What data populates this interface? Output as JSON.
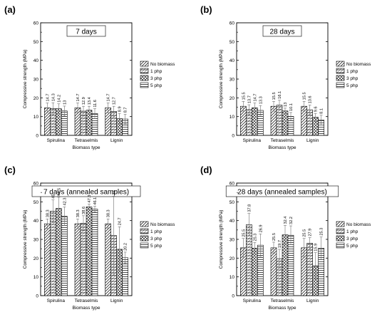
{
  "chart_data": [
    {
      "type": "bar",
      "panel_label": "(a)",
      "title": "7 days",
      "xlabel": "Biomass type",
      "ylabel": "Compressive strength (MPa)",
      "ylim": [
        0,
        60
      ],
      "yticks": [
        0,
        10,
        20,
        30,
        40,
        50,
        60
      ],
      "categories": [
        "Spirulina",
        "Tetraselmis",
        "Lignin"
      ],
      "legend_placement": "right",
      "series": [
        {
          "name": "No biomass",
          "values": [
            14.7,
            14.7,
            14.7
          ],
          "errors": [
            2.6,
            2.6,
            2.6
          ],
          "labels": [
            "14.7",
            "14.7",
            "14.7"
          ]
        },
        {
          "name": "1 php",
          "values": [
            14.3,
            12.9,
            12.7
          ],
          "errors": [
            3.1,
            2.6,
            2.8
          ],
          "labels": [
            "14.3",
            "12.9",
            "12.7"
          ]
        },
        {
          "name": "3 php",
          "values": [
            14.2,
            13.4,
            8.9
          ],
          "errors": [
            2.6,
            2.1,
            2.8
          ],
          "labels": [
            "14.2",
            "13.4",
            "8.9"
          ]
        },
        {
          "name": "5 php",
          "values": [
            13.0,
            11.6,
            8.7
          ],
          "errors": [
            2.6,
            2.6,
            2.6
          ],
          "labels": [
            "13",
            "11.6",
            "8.7"
          ]
        }
      ]
    },
    {
      "type": "bar",
      "panel_label": "(b)",
      "title": "28 days",
      "xlabel": "Biomass type",
      "ylabel": "Compressive strength (MPa)",
      "ylim": [
        0,
        60
      ],
      "yticks": [
        0,
        10,
        20,
        30,
        40,
        50,
        60
      ],
      "categories": [
        "Spirulina",
        "Tetraselmis",
        "Lignin"
      ],
      "legend_placement": "right",
      "series": [
        {
          "name": "No biomass",
          "values": [
            15.5,
            15.5,
            15.5
          ],
          "errors": [
            2.6,
            2.6,
            2.6
          ],
          "labels": [
            "15.5",
            "15.5",
            "15.5"
          ]
        },
        {
          "name": "1 php",
          "values": [
            13.7,
            16.1,
            13.6
          ],
          "errors": [
            2.6,
            2.6,
            2.6
          ],
          "labels": [
            "13.7",
            "16.1",
            "13.6"
          ]
        },
        {
          "name": "3 php",
          "values": [
            14.7,
            13.0,
            9.6
          ],
          "errors": [
            2.6,
            1.5,
            2.1
          ],
          "labels": [
            "14.7",
            "13",
            "9.6"
          ]
        },
        {
          "name": "5 php",
          "values": [
            13.3,
            10.1,
            8.1
          ],
          "errors": [
            2.6,
            2.1,
            2.6
          ],
          "labels": [
            "13.3",
            "10.1",
            "8.1"
          ]
        }
      ]
    },
    {
      "type": "bar",
      "panel_label": "(c)",
      "title": "7 days (annealed samples)",
      "xlabel": "Biomass type",
      "ylabel": "Compressive strength (MPa)",
      "ylim": [
        0,
        60
      ],
      "yticks": [
        0,
        10,
        20,
        30,
        40,
        50,
        60
      ],
      "categories": [
        "Spirulina",
        "Tetraselmis",
        "Lignin"
      ],
      "legend_placement": "right",
      "series": [
        {
          "name": "No biomass",
          "values": [
            38.3,
            38.3,
            38.3
          ],
          "errors": [
            2.6,
            2.6,
            2.6
          ],
          "labels": [
            "38.3",
            "38.3",
            "38.3"
          ]
        },
        {
          "name": "1 php",
          "values": [
            45.0,
            38.6,
            32.0
          ],
          "errors": [
            6.0,
            4.0,
            21.0
          ],
          "labels": [
            "45",
            "38.6",
            "32"
          ]
        },
        {
          "name": "3 php",
          "values": [
            46.5,
            47.3,
            24.7
          ],
          "errors": [
            6.0,
            1.5,
            12.0
          ],
          "labels": [
            "46.5",
            "47.3",
            "24.7"
          ]
        },
        {
          "name": "5 php",
          "values": [
            42.3,
            46.1,
            20.2
          ],
          "errors": [
            5.0,
            1.5,
            3.0
          ],
          "labels": [
            "42.3",
            "46.1",
            "20.2"
          ]
        }
      ]
    },
    {
      "type": "bar",
      "panel_label": "(d)",
      "title": "28 days (annealed samples)",
      "xlabel": "Biomass type",
      "ylabel": "Compressive strength (MPa)",
      "ylim": [
        0,
        60
      ],
      "yticks": [
        0,
        10,
        20,
        30,
        40,
        50,
        60
      ],
      "categories": [
        "Spirulina",
        "Tetraselmis",
        "Lignin"
      ],
      "legend_placement": "right",
      "series": [
        {
          "name": "No biomass",
          "values": [
            25.5,
            25.5,
            25.5
          ],
          "errors": [
            5.0,
            3.0,
            5.0
          ],
          "labels": [
            "25.5",
            "25.5",
            "25.5"
          ]
        },
        {
          "name": "1 php",
          "values": [
            37.8,
            19.7,
            27.9
          ],
          "errors": [
            6.0,
            5.0,
            3.0
          ],
          "labels": [
            "37.8",
            "19.7",
            "27.9"
          ]
        },
        {
          "name": "3 php",
          "values": [
            25.3,
            32.4,
            15.9
          ],
          "errors": [
            3.0,
            5.0,
            7.0
          ],
          "labels": [
            "25.3",
            "32.4",
            "15.9"
          ]
        },
        {
          "name": "5 php",
          "values": [
            26.9,
            32.2,
            25.3
          ],
          "errors": [
            6.0,
            5.0,
            6.0
          ],
          "labels": [
            "26.9",
            "32.2",
            "25.3"
          ]
        }
      ]
    }
  ],
  "colors": {
    "bar_fill": "#ffffff",
    "bar_stroke": "#000000",
    "error_bar": "#6e6e6e",
    "axis": "#000000"
  },
  "patterns": [
    "hatch-diagonal",
    "hatch-horizontal",
    "hatch-cross",
    "hatch-horizontal-dense"
  ]
}
